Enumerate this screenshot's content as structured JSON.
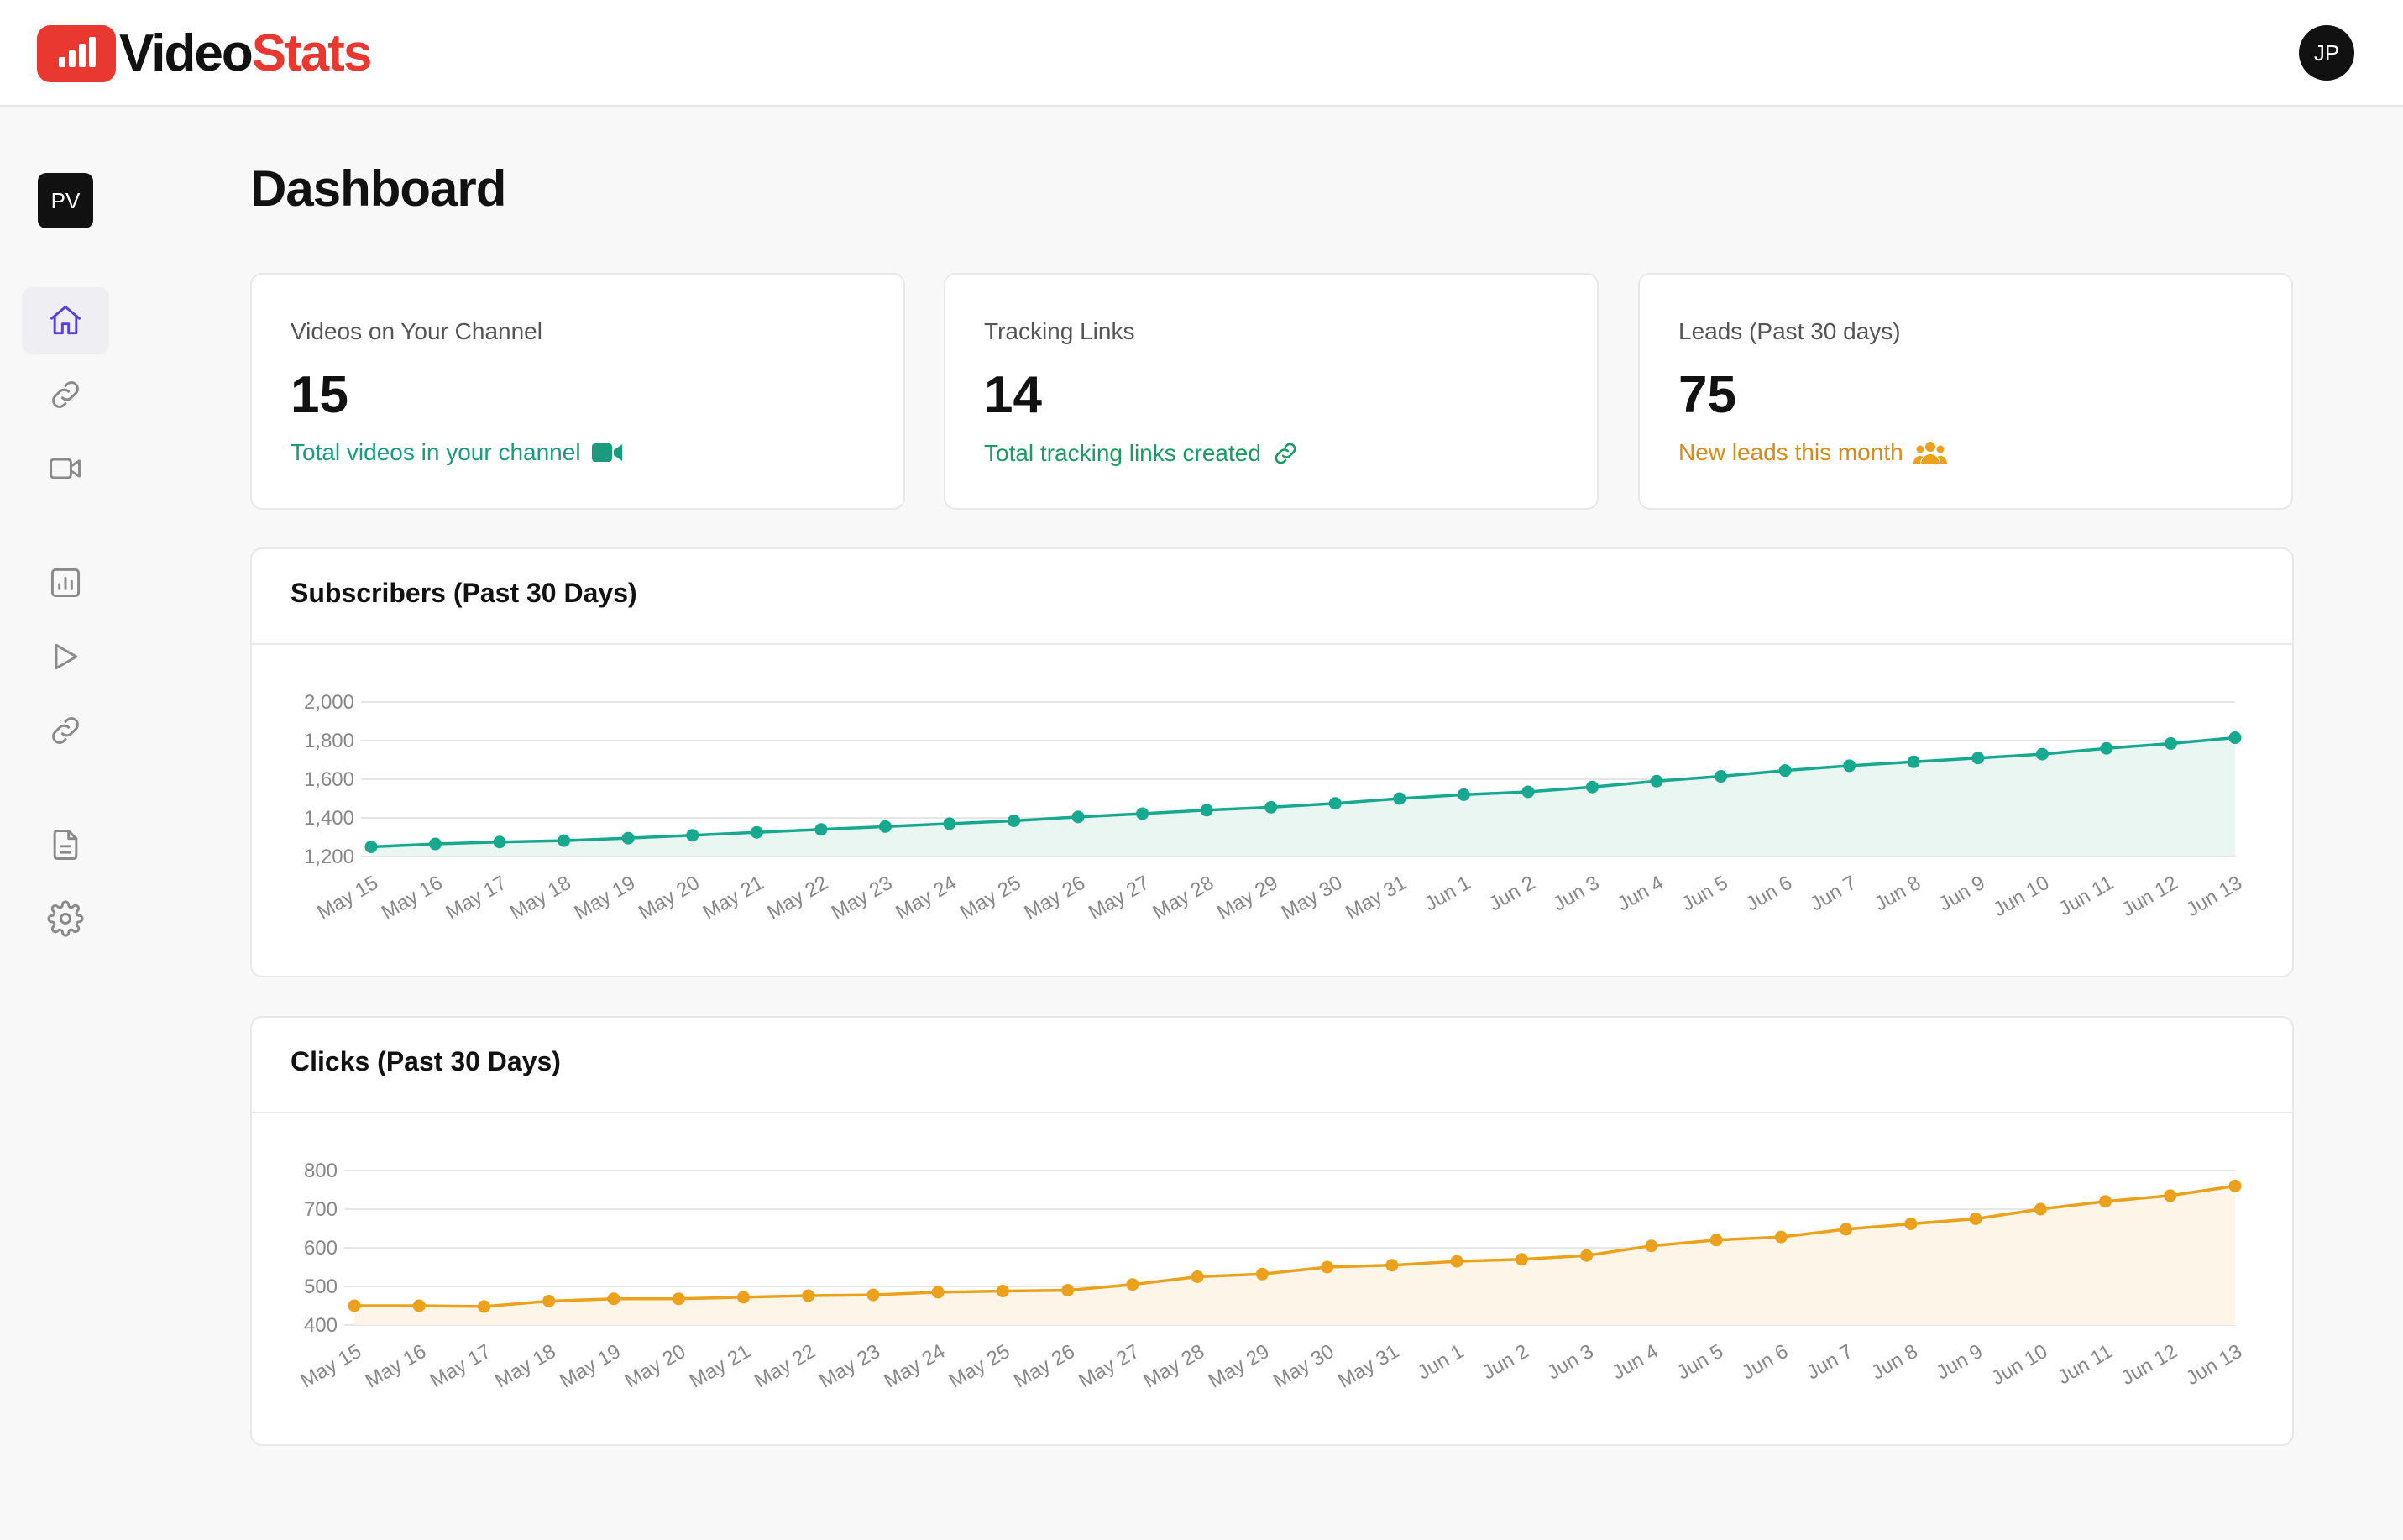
{
  "app": {
    "logo_part1": "Video",
    "logo_part2": "Stats",
    "user_initials": "JP",
    "workspace_initials": "PV"
  },
  "sidebar": {
    "items": [
      {
        "icon": "home-icon",
        "active": true
      },
      {
        "icon": "link-icon",
        "active": false
      },
      {
        "icon": "video-camera-icon",
        "active": false
      },
      {
        "icon": "bar-chart-icon",
        "active": false
      },
      {
        "icon": "play-icon",
        "active": false
      },
      {
        "icon": "link-icon",
        "active": false
      },
      {
        "icon": "document-icon",
        "active": false
      },
      {
        "icon": "gear-icon",
        "active": false
      }
    ]
  },
  "page": {
    "title": "Dashboard"
  },
  "stats": [
    {
      "label": "Videos on Your Channel",
      "value": "15",
      "sub": "Total videos in your channel",
      "color": "#1a9b7e",
      "icon": "video-camera-icon"
    },
    {
      "label": "Tracking Links",
      "value": "14",
      "sub": "Total tracking links created",
      "color": "#1a9b62",
      "icon": "link-icon"
    },
    {
      "label": "Leads (Past 30 days)",
      "value": "75",
      "sub": "New leads this month",
      "color": "#d98a12",
      "icon": "users-icon"
    }
  ],
  "chart_data": [
    {
      "type": "area",
      "title": "Subscribers (Past 30 Days)",
      "color": "#17a98f",
      "fill": "#e9f6f2",
      "ylim": [
        1200,
        2000
      ],
      "yticks": [
        1200,
        1400,
        1600,
        1800,
        2000
      ],
      "ytick_labels": [
        "1,200",
        "1,400",
        "1,600",
        "1,800",
        "2,000"
      ],
      "grid": true,
      "categories": [
        "May 15",
        "May 16",
        "May 17",
        "May 18",
        "May 19",
        "May 20",
        "May 21",
        "May 22",
        "May 23",
        "May 24",
        "May 25",
        "May 26",
        "May 27",
        "May 28",
        "May 29",
        "May 30",
        "May 31",
        "Jun 1",
        "Jun 2",
        "Jun 3",
        "Jun 4",
        "Jun 5",
        "Jun 6",
        "Jun 7",
        "Jun 8",
        "Jun 9",
        "Jun 10",
        "Jun 11",
        "Jun 12",
        "Jun 13"
      ],
      "values": [
        1250,
        1265,
        1275,
        1282,
        1295,
        1310,
        1325,
        1340,
        1355,
        1370,
        1385,
        1405,
        1422,
        1440,
        1455,
        1475,
        1500,
        1520,
        1535,
        1560,
        1590,
        1615,
        1645,
        1670,
        1690,
        1710,
        1730,
        1760,
        1785,
        1815
      ]
    },
    {
      "type": "area",
      "title": "Clicks (Past 30 Days)",
      "color": "#eba11c",
      "fill": "#fdf5e8",
      "ylim": [
        400,
        800
      ],
      "yticks": [
        400,
        500,
        600,
        700,
        800
      ],
      "ytick_labels": [
        "400",
        "500",
        "600",
        "700",
        "800"
      ],
      "grid": true,
      "categories": [
        "May 15",
        "May 16",
        "May 17",
        "May 18",
        "May 19",
        "May 20",
        "May 21",
        "May 22",
        "May 23",
        "May 24",
        "May 25",
        "May 26",
        "May 27",
        "May 28",
        "May 29",
        "May 30",
        "May 31",
        "Jun 1",
        "Jun 2",
        "Jun 3",
        "Jun 4",
        "Jun 5",
        "Jun 6",
        "Jun 7",
        "Jun 8",
        "Jun 9",
        "Jun 10",
        "Jun 11",
        "Jun 12",
        "Jun 13"
      ],
      "values": [
        450,
        450,
        448,
        462,
        468,
        468,
        472,
        476,
        478,
        485,
        488,
        490,
        505,
        525,
        532,
        550,
        555,
        565,
        570,
        580,
        605,
        620,
        628,
        648,
        662,
        675,
        700,
        720,
        735,
        760
      ]
    }
  ]
}
